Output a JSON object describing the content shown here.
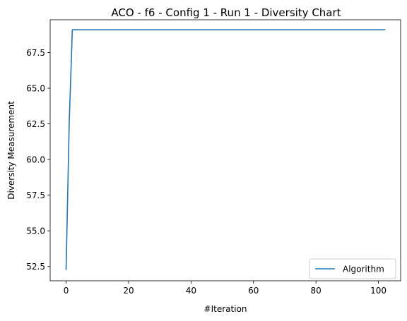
{
  "chart_data": {
    "type": "line",
    "title": "ACO - f6 - Config 1 - Run 1 - Diversity Chart",
    "xlabel": "#Iteration",
    "ylabel": "Diversity Measurement",
    "xlim": [
      -5.1,
      107.1
    ],
    "ylim": [
      51.5,
      69.8
    ],
    "xticks": [
      0,
      20,
      40,
      60,
      80,
      100
    ],
    "yticks": [
      52.5,
      55.0,
      57.5,
      60.0,
      62.5,
      65.0,
      67.5
    ],
    "xtick_labels": [
      "0",
      "20",
      "40",
      "60",
      "80",
      "100"
    ],
    "ytick_labels": [
      "52.5",
      "55.0",
      "57.5",
      "60.0",
      "62.5",
      "65.0",
      "67.5"
    ],
    "grid": false,
    "legend_position": "lower-right",
    "series": [
      {
        "name": "Algorithm",
        "color": "#1f77b4",
        "x": [
          0,
          1,
          2,
          3,
          102
        ],
        "y": [
          52.3,
          62.6,
          69.1,
          69.1,
          69.1
        ]
      }
    ]
  }
}
